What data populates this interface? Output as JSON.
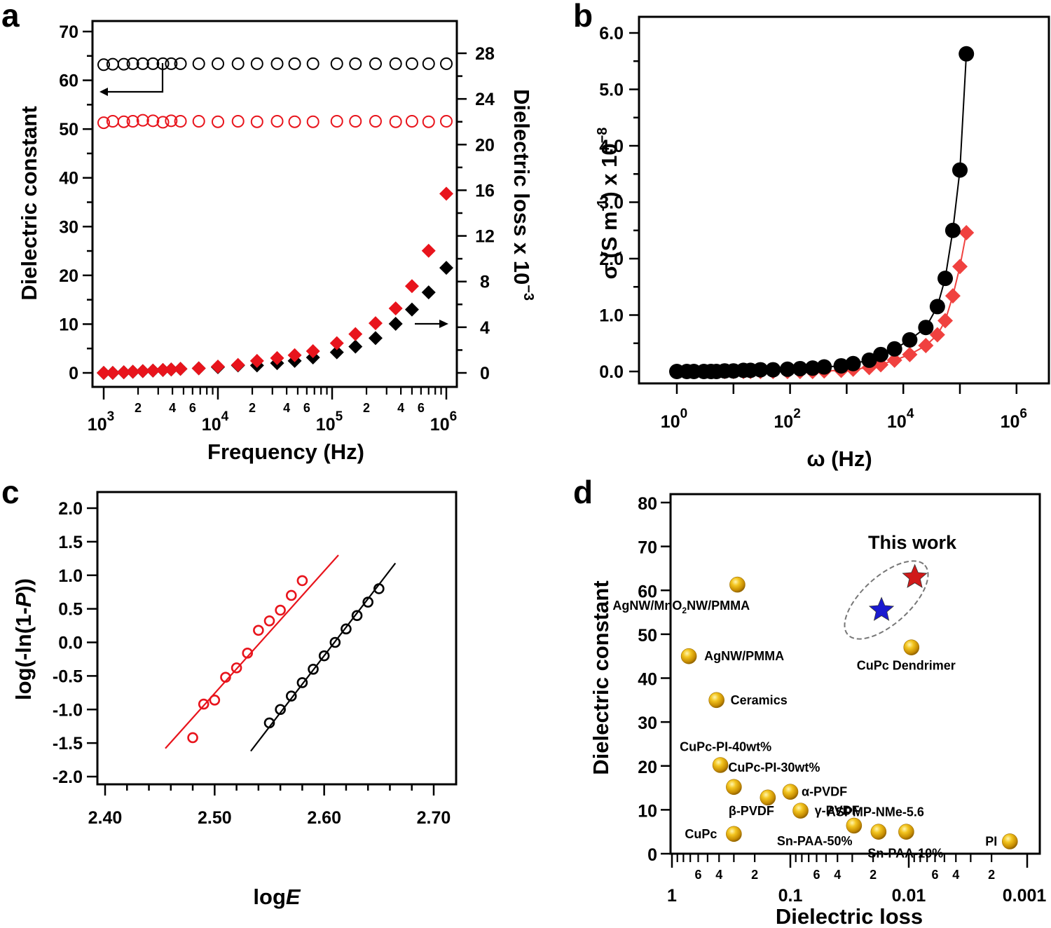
{
  "figure": {
    "panels": [
      "a",
      "b",
      "c",
      "d"
    ]
  },
  "chart_data": [
    {
      "id": "a",
      "type": "scatter",
      "panel_label": "a",
      "xlabel": "Frequency (Hz)",
      "ylabel": "Dielectric constant",
      "y2label": "Dielectric loss x 10",
      "y2label_exp": "−3",
      "xscale": "log",
      "xlim": [
        1000,
        1000000
      ],
      "ylim": [
        0,
        70
      ],
      "y2lim": [
        0,
        28
      ],
      "x_major_ticks": [
        {
          "base": "10",
          "exp": "3"
        },
        {
          "base": "10",
          "exp": "4"
        },
        {
          "base": "10",
          "exp": "5"
        },
        {
          "base": "10",
          "exp": "6"
        }
      ],
      "x_minor_labels": [
        "2",
        "4",
        "6"
      ],
      "y_ticks": [
        "0",
        "10",
        "20",
        "30",
        "40",
        "50",
        "60",
        "70"
      ],
      "y2_ticks": [
        "0",
        "4",
        "8",
        "12",
        "16",
        "20",
        "24",
        "28"
      ],
      "annotations": [
        {
          "type": "arrow",
          "direction": "left",
          "meaning": "open circles read on left axis"
        },
        {
          "type": "arrow",
          "direction": "right",
          "meaning": "filled diamonds read on right axis"
        }
      ],
      "x": [
        1000,
        1200,
        1500,
        1800,
        2200,
        2700,
        3300,
        3900,
        4700,
        6800,
        10000,
        15000,
        22000,
        33000,
        47000,
        68000,
        110000,
        160000,
        240000,
        360000,
        500000,
        700000,
        1000000
      ],
      "series": [
        {
          "name": "Dielectric constant (black)",
          "axis": "left",
          "marker": "open-circle",
          "color": "#000000",
          "values": [
            63.2,
            63.3,
            63.3,
            63.4,
            63.4,
            63.4,
            63.4,
            63.4,
            63.4,
            63.4,
            63.4,
            63.4,
            63.4,
            63.4,
            63.4,
            63.4,
            63.4,
            63.4,
            63.4,
            63.4,
            63.4,
            63.4,
            63.4
          ]
        },
        {
          "name": "Dielectric constant (red)",
          "axis": "left",
          "marker": "open-circle",
          "color": "#e8141c",
          "values": [
            51.3,
            51.6,
            51.5,
            51.6,
            51.8,
            51.7,
            51.4,
            51.7,
            51.6,
            51.6,
            51.5,
            51.6,
            51.5,
            51.6,
            51.5,
            51.5,
            51.6,
            51.6,
            51.6,
            51.5,
            51.6,
            51.5,
            51.6
          ]
        },
        {
          "name": "Dielectric loss (black)",
          "axis": "right",
          "marker": "filled-diamond",
          "color": "#000000",
          "values": [
            0.0,
            0.0,
            0.05,
            0.1,
            0.15,
            0.2,
            0.25,
            0.3,
            0.35,
            0.4,
            0.5,
            0.65,
            0.65,
            0.85,
            1.05,
            1.35,
            1.8,
            2.3,
            3.05,
            4.3,
            5.55,
            7.05,
            9.2
          ]
        },
        {
          "name": "Dielectric loss (red)",
          "axis": "right",
          "marker": "filled-diamond",
          "color": "#e8141c",
          "values": [
            0.0,
            0.0,
            0.05,
            0.1,
            0.15,
            0.2,
            0.25,
            0.3,
            0.35,
            0.4,
            0.55,
            0.7,
            1.05,
            1.3,
            1.55,
            1.9,
            2.6,
            3.4,
            4.35,
            5.65,
            7.6,
            10.7,
            15.7
          ]
        }
      ]
    },
    {
      "id": "b",
      "type": "line",
      "panel_label": "b",
      "xlabel": "ω (Hz)",
      "ylabel_parts": {
        "pre": "σ (S m",
        "sup1": "-1",
        "mid": ") x 10",
        "sup2": "−8"
      },
      "xscale": "log",
      "xlim": [
        1,
        1000000
      ],
      "ylim": [
        0,
        6.0
      ],
      "x_major_ticks": [
        {
          "base": "10",
          "exp": "0"
        },
        {
          "base": "10",
          "exp": "2"
        },
        {
          "base": "10",
          "exp": "4"
        },
        {
          "base": "10",
          "exp": "6"
        }
      ],
      "y_ticks": [
        "0.0",
        "1.0",
        "2.0",
        "3.0",
        "4.0",
        "5.0",
        "6.0"
      ],
      "series": [
        {
          "name": "Conductivity (black)",
          "marker": "filled-circle",
          "color": "#000000",
          "x": [
            1,
            1.5,
            2,
            3,
            4,
            5,
            7,
            10,
            15,
            20,
            30,
            50,
            90,
            150,
            250,
            400,
            800,
            1300,
            2500,
            4000,
            7000,
            13000,
            25000,
            40000,
            55000,
            75000,
            100000,
            130000
          ],
          "values": [
            0.0,
            0.0,
            0.0,
            0.0,
            0.0,
            0.0,
            0.01,
            0.01,
            0.02,
            0.02,
            0.03,
            0.03,
            0.04,
            0.05,
            0.06,
            0.08,
            0.1,
            0.14,
            0.2,
            0.3,
            0.4,
            0.56,
            0.78,
            1.15,
            1.65,
            2.5,
            3.57,
            5.63
          ]
        },
        {
          "name": "Conductivity (red)",
          "marker": "filled-diamond",
          "color": "#f0413f",
          "x": [
            1,
            1.5,
            2,
            3,
            4,
            5,
            7,
            10,
            15,
            20,
            30,
            50,
            90,
            150,
            250,
            400,
            800,
            1300,
            2500,
            4000,
            7000,
            13000,
            25000,
            40000,
            55000,
            75000,
            100000,
            130000
          ],
          "values": [
            0.0,
            0.0,
            0.0,
            0.0,
            0.0,
            0.0,
            0.0,
            0.0,
            0.0,
            0.0,
            0.0,
            0.0,
            0.0,
            0.0,
            0.0,
            0.01,
            0.02,
            0.04,
            0.07,
            0.12,
            0.2,
            0.3,
            0.46,
            0.65,
            0.9,
            1.34,
            1.86,
            2.46
          ]
        }
      ]
    },
    {
      "id": "c",
      "type": "scatter",
      "panel_label": "c",
      "xlabel_parts": {
        "pre": "log",
        "ital": "E"
      },
      "ylabel_parts": {
        "pre": "log(-ln(1-",
        "ital": "P",
        "post": "))"
      },
      "xlim": [
        2.39,
        2.72
      ],
      "ylim": [
        -2.1,
        2.1
      ],
      "x_ticks": [
        "2.40",
        "2.50",
        "2.60",
        "2.70"
      ],
      "y_ticks": [
        "2.0",
        "1.5",
        "1.0",
        "0.5",
        "0.0",
        "-0.5",
        "-1.0",
        "-1.5",
        "-2.0"
      ],
      "series": [
        {
          "name": "Red Weibull data",
          "marker": "open-circle",
          "color": "#e8141c",
          "x": [
            2.48,
            2.49,
            2.5,
            2.51,
            2.52,
            2.53,
            2.54,
            2.55,
            2.56,
            2.57,
            2.58
          ],
          "values": [
            -1.42,
            -0.92,
            -0.86,
            -0.52,
            -0.38,
            -0.16,
            0.18,
            0.32,
            0.48,
            0.7,
            0.92
          ],
          "fit": {
            "x": [
              2.455,
              2.613
            ],
            "y": [
              -1.58,
              1.3
            ]
          }
        },
        {
          "name": "Black Weibull data",
          "marker": "open-circle",
          "color": "#000000",
          "x": [
            2.55,
            2.56,
            2.57,
            2.58,
            2.59,
            2.6,
            2.61,
            2.62,
            2.63,
            2.64,
            2.65
          ],
          "values": [
            -1.2,
            -1.0,
            -0.8,
            -0.6,
            -0.4,
            -0.2,
            0.0,
            0.2,
            0.4,
            0.6,
            0.8
          ],
          "fit": {
            "x": [
              2.533,
              2.665
            ],
            "y": [
              -1.62,
              1.18
            ]
          }
        }
      ]
    },
    {
      "id": "d",
      "type": "scatter",
      "panel_label": "d",
      "xlabel": "Dielectric loss",
      "ylabel": "Dielectric constant",
      "xscale": "log",
      "x_reversed": true,
      "xlim": [
        1,
        0.001
      ],
      "ylim": [
        0,
        80
      ],
      "x_major_ticks": [
        "1",
        "0.1",
        "0.01",
        "0.001"
      ],
      "x_minor_labels": [
        "6",
        "4",
        "2"
      ],
      "y_ticks": [
        "0",
        "10",
        "20",
        "30",
        "40",
        "50",
        "60",
        "70",
        "80"
      ],
      "highlight": {
        "label": "This work",
        "enclosure": "dashed-ellipse"
      },
      "points": [
        {
          "label": "AgNW/MnO₂NW/PMMA",
          "label_pre": "AgNW/MnO",
          "label_sub": "2",
          "label_post": "NW/PMMA",
          "x": 0.28,
          "y": 61.3,
          "marker": "gold-sphere"
        },
        {
          "label": "AgNW/PMMA",
          "x": 0.72,
          "y": 45.0,
          "marker": "gold-sphere"
        },
        {
          "label": "Ceramics",
          "x": 0.42,
          "y": 35.0,
          "marker": "gold-sphere"
        },
        {
          "label": "CuPc-PI-40wt%",
          "x": 0.39,
          "y": 20.2,
          "marker": "gold-sphere"
        },
        {
          "label": "CuPc-PI-30wt%",
          "x": 0.3,
          "y": 15.2,
          "marker": "gold-sphere"
        },
        {
          "label": "β-PVDF",
          "x": 0.155,
          "y": 12.8,
          "marker": "gold-sphere"
        },
        {
          "label": "α-PVDF",
          "x": 0.1,
          "y": 14.1,
          "marker": "gold-sphere"
        },
        {
          "label": "γ-PVDF",
          "x": 0.082,
          "y": 9.8,
          "marker": "gold-sphere"
        },
        {
          "label": "CuPc",
          "x": 0.3,
          "y": 4.5,
          "marker": "gold-sphere"
        },
        {
          "label": "Sn-PAA-50%",
          "x": 0.029,
          "y": 6.4,
          "marker": "gold-sphere"
        },
        {
          "label": "ASPMP-NMe-5.6",
          "x": 0.018,
          "y": 5.0,
          "marker": "gold-sphere"
        },
        {
          "label": "Sn-PAA-10%",
          "x": 0.0105,
          "y": 5.0,
          "marker": "gold-sphere"
        },
        {
          "label": "CuPc Dendrimer",
          "x": 0.0095,
          "y": 47.0,
          "marker": "gold-sphere"
        },
        {
          "label": "PI",
          "x": 0.0014,
          "y": 2.8,
          "marker": "gold-sphere"
        },
        {
          "label": "This work (blue)",
          "x": 0.017,
          "y": 55.5,
          "marker": "star",
          "color": "#1a1ad0"
        },
        {
          "label": "This work (red)",
          "x": 0.0089,
          "y": 63.0,
          "marker": "star",
          "color": "#d01a1a"
        }
      ]
    }
  ]
}
